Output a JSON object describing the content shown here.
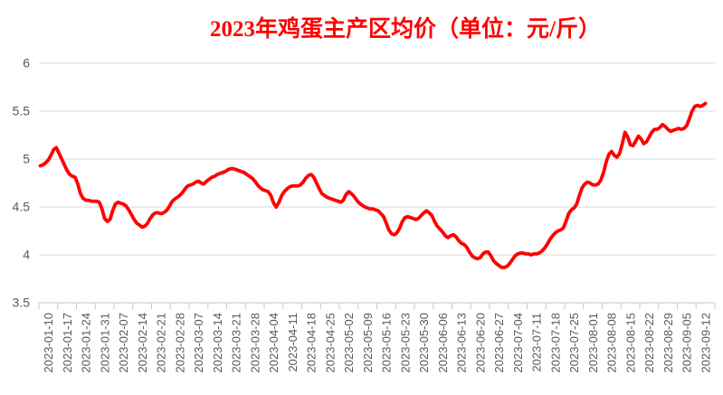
{
  "chart_data": {
    "type": "line",
    "title": "2023年鸡蛋主产区均价（单位：元/斤）",
    "unit": "元/斤",
    "frequency": "daily",
    "series_name": "鸡蛋主产区均价",
    "x_tick_labels": [
      "2023-01-10",
      "2023-01-17",
      "2023-01-24",
      "2023-01-31",
      "2023-02-07",
      "2023-02-14",
      "2023-02-21",
      "2023-02-28",
      "2023-03-07",
      "2023-03-14",
      "2023-03-21",
      "2023-03-28",
      "2023-04-04",
      "2023-04-11",
      "2023-04-18",
      "2023-04-25",
      "2023-05-02",
      "2023-05-09",
      "2023-05-16",
      "2023-05-23",
      "2023-05-30",
      "2023-06-06",
      "2023-06-13",
      "2023-06-20",
      "2023-06-27",
      "2023-07-04",
      "2023-07-11",
      "2023-07-18",
      "2023-07-25",
      "2023-08-01",
      "2023-08-08",
      "2023-08-15",
      "2023-08-22",
      "2023-08-29",
      "2023-09-05",
      "2023-09-12"
    ],
    "x_label_interval_days": 7,
    "values_start_day_offset": -3,
    "y_tick_labels": [
      "6",
      "5.5",
      "5",
      "4.5",
      "4",
      "3.5"
    ],
    "ylim": [
      3.5,
      6
    ],
    "grid": "horizontal",
    "legend": "none",
    "values": [
      4.93,
      4.94,
      4.96,
      4.99,
      5.04,
      5.1,
      5.12,
      5.06,
      5.0,
      4.94,
      4.88,
      4.84,
      4.82,
      4.81,
      4.74,
      4.64,
      4.59,
      4.57,
      4.57,
      4.56,
      4.56,
      4.56,
      4.55,
      4.48,
      4.38,
      4.35,
      4.37,
      4.46,
      4.53,
      4.55,
      4.54,
      4.53,
      4.51,
      4.47,
      4.42,
      4.37,
      4.33,
      4.31,
      4.29,
      4.3,
      4.33,
      4.38,
      4.42,
      4.44,
      4.44,
      4.43,
      4.44,
      4.46,
      4.5,
      4.55,
      4.58,
      4.6,
      4.62,
      4.65,
      4.69,
      4.72,
      4.73,
      4.74,
      4.76,
      4.77,
      4.75,
      4.74,
      4.77,
      4.79,
      4.81,
      4.82,
      4.84,
      4.85,
      4.86,
      4.87,
      4.89,
      4.9,
      4.9,
      4.89,
      4.88,
      4.87,
      4.86,
      4.84,
      4.82,
      4.8,
      4.77,
      4.73,
      4.7,
      4.68,
      4.67,
      4.66,
      4.62,
      4.54,
      4.5,
      4.55,
      4.62,
      4.66,
      4.69,
      4.71,
      4.72,
      4.72,
      4.72,
      4.73,
      4.76,
      4.8,
      4.83,
      4.84,
      4.81,
      4.75,
      4.69,
      4.64,
      4.62,
      4.6,
      4.59,
      4.58,
      4.57,
      4.56,
      4.55,
      4.57,
      4.63,
      4.66,
      4.64,
      4.61,
      4.57,
      4.54,
      4.52,
      4.5,
      4.49,
      4.48,
      4.48,
      4.47,
      4.46,
      4.43,
      4.4,
      4.33,
      4.26,
      4.22,
      4.21,
      4.23,
      4.28,
      4.35,
      4.39,
      4.4,
      4.39,
      4.38,
      4.37,
      4.38,
      4.41,
      4.44,
      4.46,
      4.44,
      4.41,
      4.35,
      4.3,
      4.27,
      4.24,
      4.2,
      4.18,
      4.2,
      4.21,
      4.19,
      4.15,
      4.12,
      4.11,
      4.08,
      4.03,
      3.99,
      3.97,
      3.96,
      3.97,
      4.01,
      4.03,
      4.03,
      3.99,
      3.94,
      3.91,
      3.89,
      3.87,
      3.87,
      3.88,
      3.91,
      3.95,
      3.99,
      4.01,
      4.02,
      4.02,
      4.01,
      4.01,
      4.0,
      4.01,
      4.01,
      4.02,
      4.04,
      4.07,
      4.11,
      4.16,
      4.2,
      4.23,
      4.25,
      4.26,
      4.28,
      4.35,
      4.43,
      4.47,
      4.49,
      4.53,
      4.62,
      4.7,
      4.74,
      4.76,
      4.75,
      4.73,
      4.73,
      4.74,
      4.78,
      4.86,
      4.97,
      5.05,
      5.08,
      5.04,
      5.02,
      5.06,
      5.16,
      5.28,
      5.23,
      5.15,
      5.14,
      5.19,
      5.24,
      5.21,
      5.16,
      5.18,
      5.23,
      5.28,
      5.31,
      5.31,
      5.33,
      5.36,
      5.34,
      5.31,
      5.29,
      5.3,
      5.31,
      5.32,
      5.31,
      5.32,
      5.35,
      5.42,
      5.5,
      5.55,
      5.56,
      5.55,
      5.56,
      5.58
    ]
  },
  "colors": {
    "line": "#fe0000",
    "title": "#fe0000",
    "axis_text": "#595959",
    "gridline": "#d9d9d9",
    "axis_line": "#c6c6c6",
    "background": "#ffffff"
  }
}
